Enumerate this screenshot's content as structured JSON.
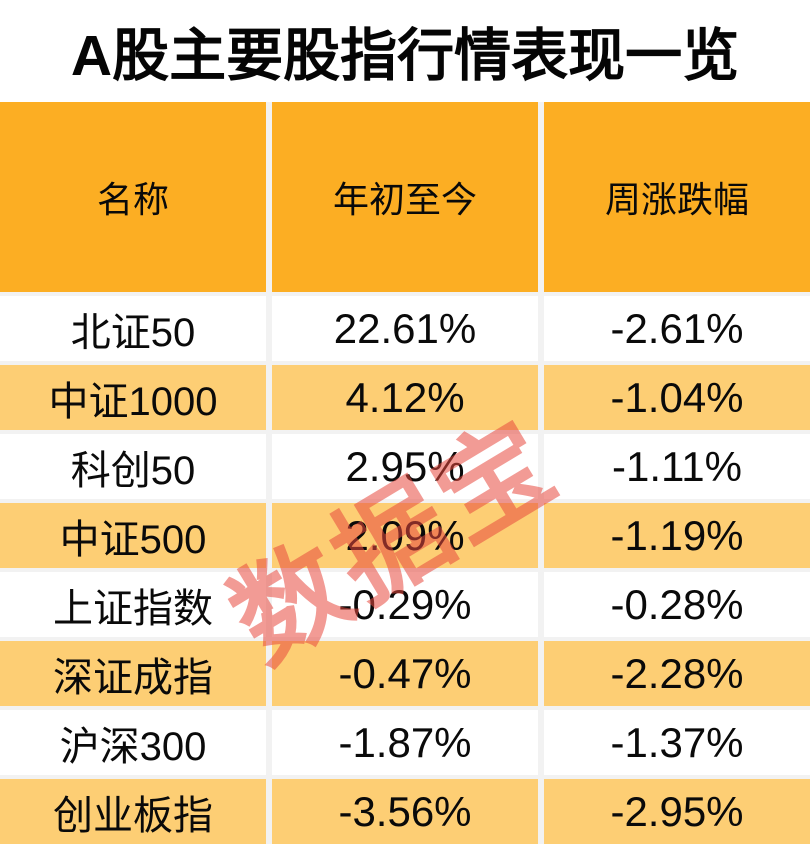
{
  "title": "A股主要股指行情表现一览",
  "watermark": "数据宝",
  "colors": {
    "header_bg": "#FCAE23",
    "row_alt_bg": "#FDCE74",
    "row_bg": "#FFFFFF",
    "separator": "#F2F2F2",
    "text": "#0A0A0A",
    "watermark": "#E8483E"
  },
  "chart_data": {
    "type": "table",
    "title": "A股主要股指行情表现一览",
    "columns": [
      "名称",
      "年初至今",
      "周涨跌幅"
    ],
    "rows": [
      [
        "北证50",
        "22.61%",
        "-2.61%"
      ],
      [
        "中证1000",
        "4.12%",
        "-1.04%"
      ],
      [
        "科创50",
        "2.95%",
        "-1.11%"
      ],
      [
        "中证500",
        "2.09%",
        "-1.19%"
      ],
      [
        "上证指数",
        "-0.29%",
        "-0.28%"
      ],
      [
        "深证成指",
        "-0.47%",
        "-2.28%"
      ],
      [
        "沪深300",
        "-1.87%",
        "-1.37%"
      ],
      [
        "创业板指",
        "-3.56%",
        "-2.95%"
      ]
    ]
  }
}
